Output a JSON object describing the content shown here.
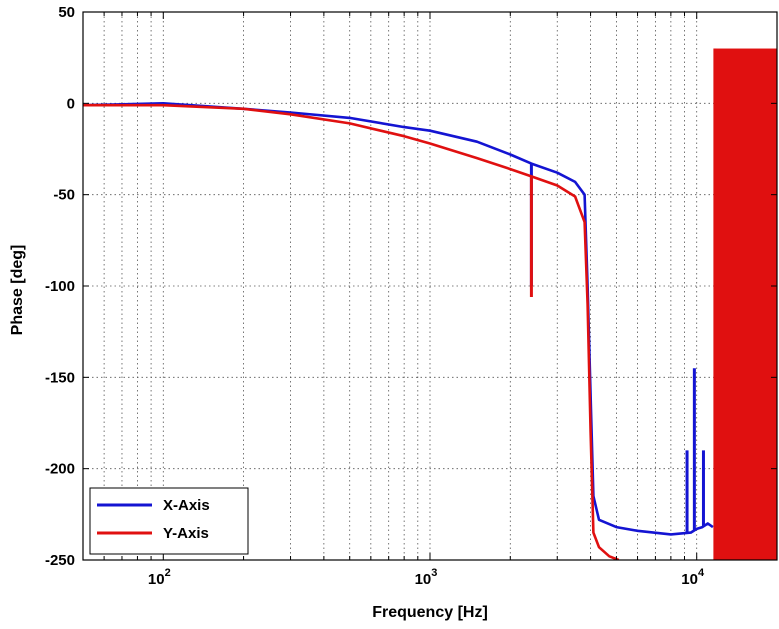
{
  "chart_data": {
    "type": "line",
    "title": "",
    "xlabel": "Frequency [Hz]",
    "ylabel": "Phase [deg]",
    "xscale": "log",
    "xlim": [
      50,
      20000
    ],
    "ylim": [
      -250,
      50
    ],
    "yticks": [
      50,
      0,
      -50,
      -100,
      -150,
      -200,
      -250
    ],
    "xticks": [
      100,
      1000,
      10000
    ],
    "xtick_labels": [
      {
        "base": "10",
        "exp": "2"
      },
      {
        "base": "10",
        "exp": "3"
      },
      {
        "base": "10",
        "exp": "4"
      }
    ],
    "grid": true,
    "legend_position": "bottom-left",
    "series": [
      {
        "name": "X-Axis",
        "color": "#1414d2",
        "x": [
          50,
          100,
          200,
          300,
          500,
          800,
          1000,
          1500,
          2000,
          2400,
          3000,
          3500,
          3800,
          3900,
          4000,
          4100,
          4300,
          5000,
          6000,
          8000,
          9500,
          10000,
          10500,
          11000,
          11500
        ],
        "y": [
          -1,
          0,
          -3,
          -5,
          -8,
          -13,
          -15,
          -21,
          -28,
          -33,
          -38,
          -43,
          -50,
          -100,
          -160,
          -215,
          -228,
          -232,
          -234,
          -236,
          -235,
          -233,
          -232,
          -230,
          -232
        ],
        "spikes": [
          {
            "x": 2400,
            "y": -100
          },
          {
            "x": 9800,
            "y": -145
          },
          {
            "x": 9200,
            "y": -190
          },
          {
            "x": 10600,
            "y": -190
          }
        ]
      },
      {
        "name": "Y-Axis",
        "color": "#e01010",
        "x": [
          50,
          100,
          200,
          300,
          500,
          800,
          1000,
          1500,
          2000,
          2400,
          3000,
          3500,
          3800,
          3900,
          4000,
          4100,
          4300,
          4700,
          5100
        ],
        "y": [
          -1,
          -1,
          -3,
          -6,
          -11,
          -18,
          -22,
          -30,
          -36,
          -40,
          -45,
          -51,
          -65,
          -110,
          -180,
          -235,
          -243,
          -248,
          -250
        ],
        "spikes": [
          {
            "x": 2400,
            "y": -106
          }
        ],
        "noise_band": {
          "x_start": 11700,
          "x_end": 20000,
          "y_top": 30,
          "y_bottom": -250
        }
      }
    ]
  }
}
